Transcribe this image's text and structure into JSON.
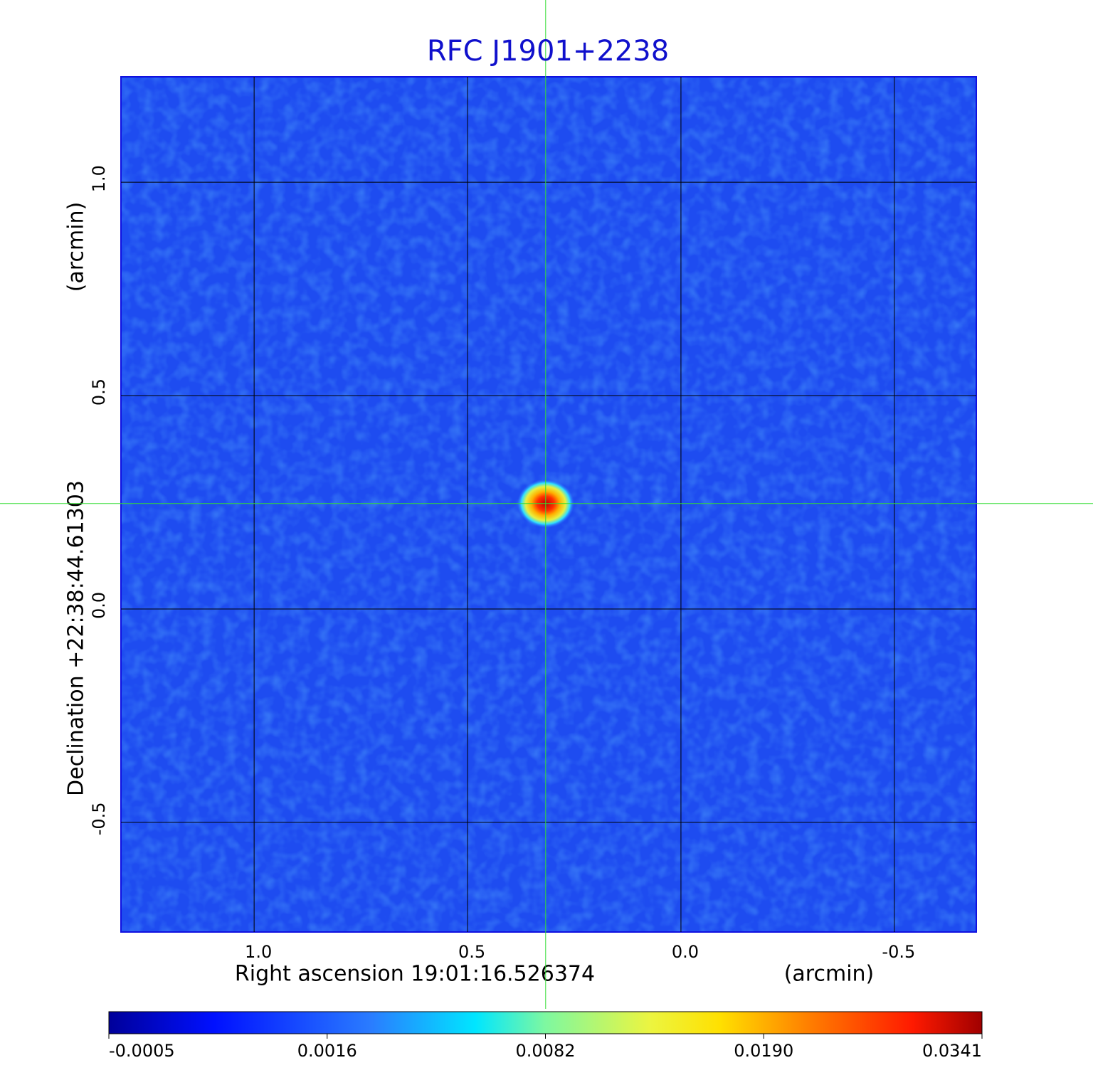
{
  "chart_data": {
    "type": "image",
    "title": "RFC J1901+2238",
    "xlabel": "Right ascension  19:01:16.526374",
    "xunit": "(arcmin)",
    "ylabel": "Declination  +22:38:44.61303",
    "yunit": "(arcmin)",
    "xlim": [
      1.312,
      -0.692
    ],
    "ylim": [
      -0.757,
      1.247
    ],
    "xticks": [
      {
        "value": 1,
        "label": "1.0"
      },
      0.5,
      {
        "value": 0,
        "label": "0.0"
      },
      -0.5
    ],
    "yticks": [
      {
        "value": 1,
        "label": "1.0"
      },
      0.5,
      {
        "value": 0,
        "label": "0.0"
      },
      -0.5
    ],
    "grid": true,
    "crosshair": {
      "x": 0.317,
      "y": 0.247,
      "color": "#33dd33"
    },
    "colormap": "jet",
    "clim": [
      -0.0005,
      0.0341
    ],
    "cticks": [
      -0.0005,
      0.0016,
      0.0082,
      {
        "value": 0.019,
        "label": "0.0190"
      },
      0.0341
    ]
  }
}
